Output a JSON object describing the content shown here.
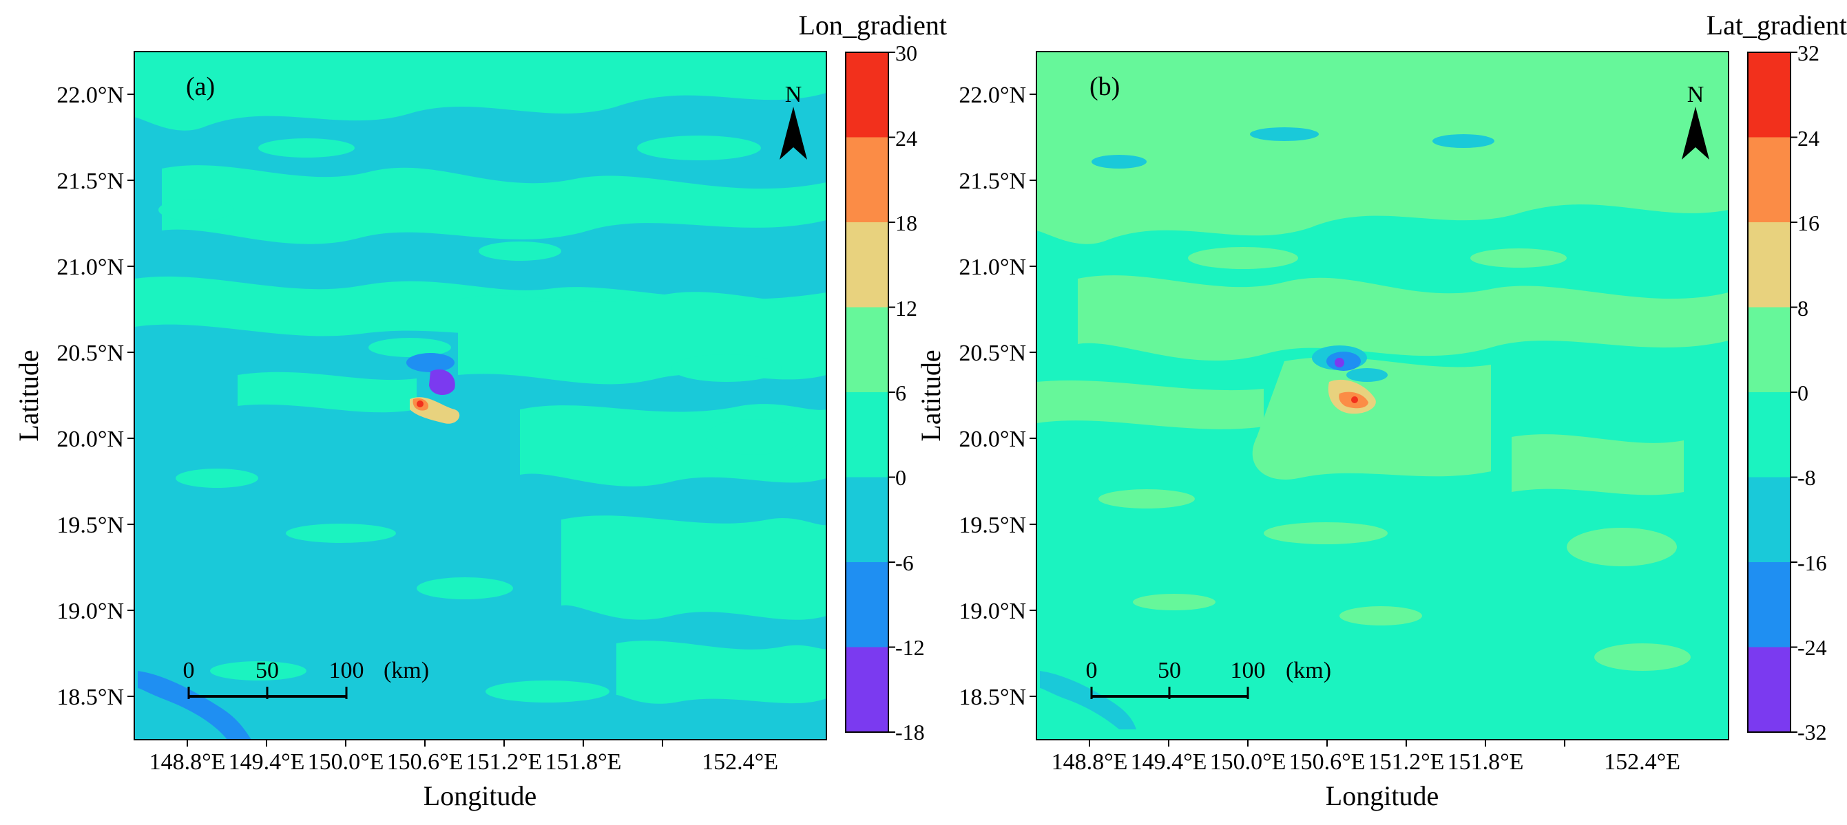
{
  "colors": {
    "level_fills": [
      "#7B3AF0",
      "#1F8FF2",
      "#1AC9D9",
      "#1BF3C0",
      "#66F79A",
      "#E8D27E",
      "#FB8C46",
      "#F2301C"
    ],
    "axis": "#000000"
  },
  "panels": [
    {
      "label": "(a)",
      "xlabel": "Longitude",
      "ylabel": "Latitude",
      "xticks": [
        "148.8°E",
        "149.4°E",
        "150.0°E",
        "150.6°E",
        "151.2°E",
        "151.8°E",
        "152.4°E"
      ],
      "yticks": [
        "22.0°N",
        "21.5°N",
        "21.0°N",
        "20.5°N",
        "20.0°N",
        "19.5°N",
        "19.0°N",
        "18.5°N"
      ],
      "north_label": "N",
      "scale_bar": {
        "labels": [
          "0",
          "50",
          "100"
        ],
        "unit": "(km)"
      },
      "colorbar": {
        "title": "Lon_gradient",
        "ticks": [
          "30",
          "24",
          "18",
          "12",
          "6",
          "0",
          "-6",
          "-12",
          "-18"
        ]
      },
      "background_level": 2,
      "patches_level": 3
    },
    {
      "label": "(b)",
      "xlabel": "Longitude",
      "ylabel": "Latitude",
      "xticks": [
        "148.8°E",
        "149.4°E",
        "150.0°E",
        "150.6°E",
        "151.2°E",
        "151.8°E",
        "152.4°E"
      ],
      "yticks": [
        "22.0°N",
        "21.5°N",
        "21.0°N",
        "20.5°N",
        "20.0°N",
        "19.5°N",
        "19.0°N",
        "18.5°N"
      ],
      "north_label": "N",
      "scale_bar": {
        "labels": [
          "0",
          "50",
          "100"
        ],
        "unit": "(km)"
      },
      "colorbar": {
        "title": "Lat_gradient",
        "ticks": [
          "32",
          "24",
          "16",
          "8",
          "0",
          "-8",
          "-16",
          "-24",
          "-32"
        ]
      },
      "background_level": 3,
      "patches_level": 4
    }
  ]
}
